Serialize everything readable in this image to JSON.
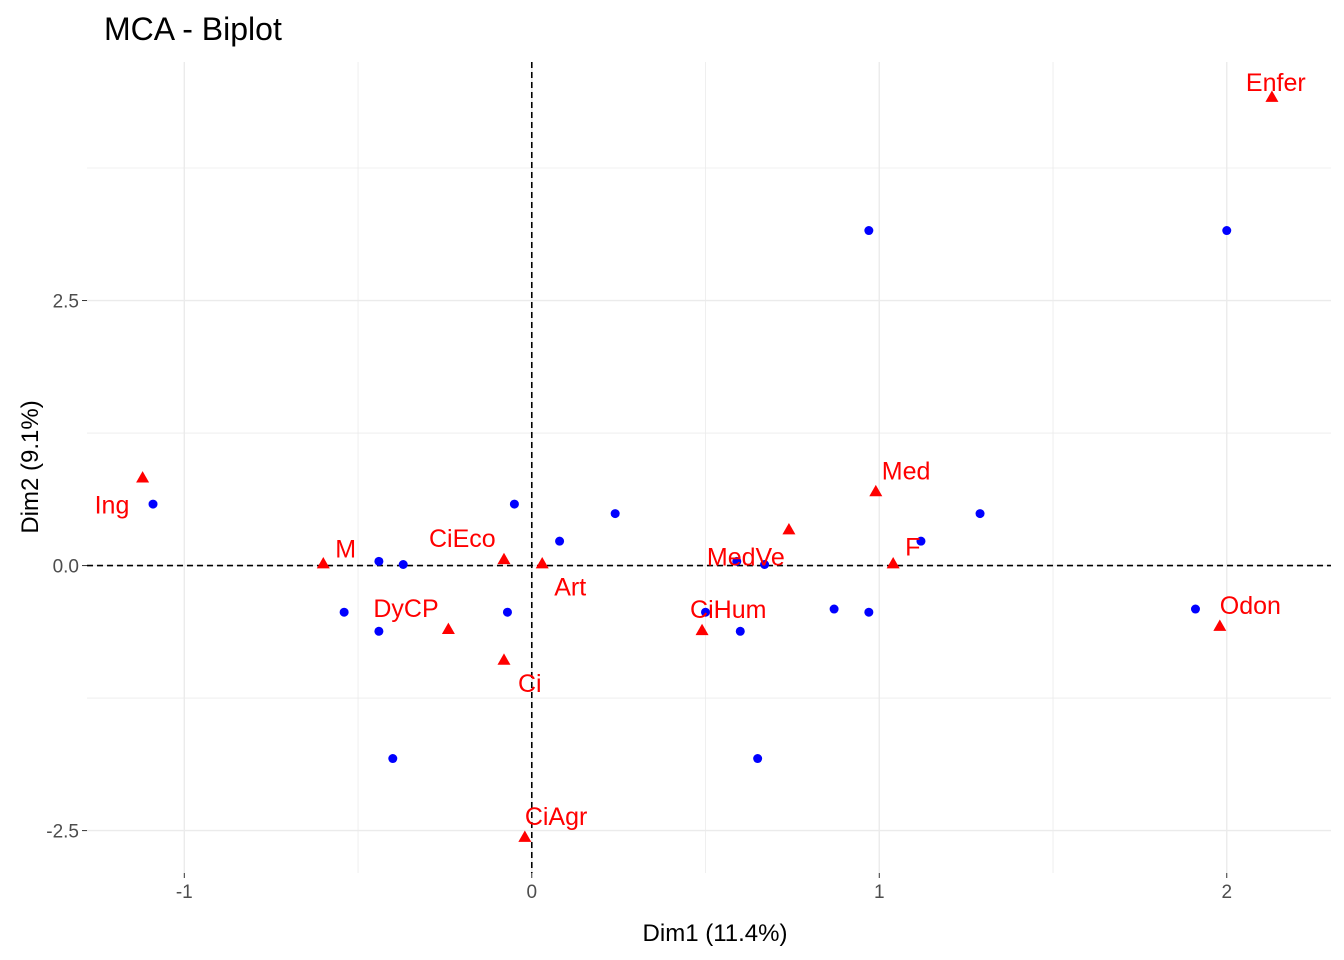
{
  "chart_data": {
    "type": "scatter",
    "title": "MCA - Biplot",
    "xlabel": "Dim1 (11.4%)",
    "ylabel": "Dim2 (9.1%)",
    "xlim": [
      -1.28,
      2.3
    ],
    "ylim": [
      -2.9,
      4.75
    ],
    "x_ticks": [
      {
        "value": -1,
        "label": "-1"
      },
      {
        "value": 0,
        "label": "0"
      },
      {
        "value": 1,
        "label": "1"
      },
      {
        "value": 2,
        "label": "2"
      }
    ],
    "y_ticks": [
      {
        "value": -2.5,
        "label": "-2.5"
      },
      {
        "value": 0,
        "label": "0.0"
      },
      {
        "value": 2.5,
        "label": "2.5"
      }
    ],
    "grid": true,
    "reference_lines": {
      "x": 0,
      "y": 0,
      "style": "dashed"
    },
    "colors": {
      "individuals": "#0000ff",
      "variables": "#ff0000"
    },
    "individuals": [
      {
        "x": -1.09,
        "y": 0.58
      },
      {
        "x": -0.54,
        "y": -0.44
      },
      {
        "x": -0.44,
        "y": 0.04
      },
      {
        "x": -0.44,
        "y": -0.62
      },
      {
        "x": -0.37,
        "y": 0.01
      },
      {
        "x": -0.4,
        "y": -1.82
      },
      {
        "x": -0.07,
        "y": -0.44
      },
      {
        "x": -0.05,
        "y": 0.58
      },
      {
        "x": 0.08,
        "y": 0.23
      },
      {
        "x": 0.24,
        "y": 0.49
      },
      {
        "x": 0.5,
        "y": -0.44
      },
      {
        "x": 0.59,
        "y": 0.04
      },
      {
        "x": 0.6,
        "y": -0.62
      },
      {
        "x": 0.67,
        "y": 0.01
      },
      {
        "x": 0.65,
        "y": -1.82
      },
      {
        "x": 0.87,
        "y": -0.41
      },
      {
        "x": 0.97,
        "y": -0.44
      },
      {
        "x": 0.97,
        "y": 3.16
      },
      {
        "x": 1.12,
        "y": 0.23
      },
      {
        "x": 1.29,
        "y": 0.49
      },
      {
        "x": 1.91,
        "y": -0.41
      },
      {
        "x": 2.0,
        "y": 3.16
      }
    ],
    "variables": [
      {
        "label": "Ing",
        "x": -1.12,
        "y": 0.83
      },
      {
        "label": "M",
        "x": -0.6,
        "y": 0.02
      },
      {
        "label": "CiEco",
        "x": -0.08,
        "y": 0.06
      },
      {
        "label": "Art",
        "x": 0.03,
        "y": 0.02
      },
      {
        "label": "DyCP",
        "x": -0.24,
        "y": -0.6
      },
      {
        "label": "Ci",
        "x": -0.08,
        "y": -0.89
      },
      {
        "label": "CiAgr",
        "x": -0.02,
        "y": -2.56
      },
      {
        "label": "MedVe",
        "x": 0.74,
        "y": 0.34
      },
      {
        "label": "CiHum",
        "x": 0.49,
        "y": -0.61
      },
      {
        "label": "Med",
        "x": 0.99,
        "y": 0.7
      },
      {
        "label": "F",
        "x": 1.04,
        "y": 0.02
      },
      {
        "label": "Odon",
        "x": 1.98,
        "y": -0.57
      },
      {
        "label": "Enfer",
        "x": 2.13,
        "y": 4.42
      }
    ]
  }
}
